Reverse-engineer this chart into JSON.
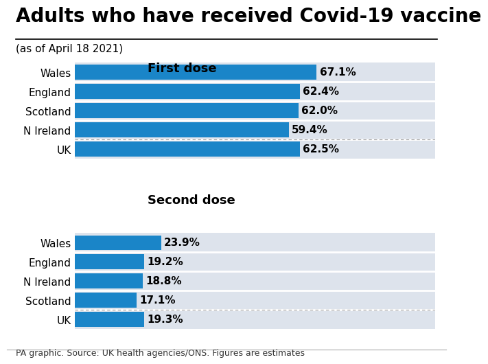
{
  "title": "Adults who have received Covid-19 vaccine",
  "subtitle": "(as of April 18 2021)",
  "footer": "PA graphic. Source: UK health agencies/ONS. Figures are estimates",
  "first_dose": {
    "label": "First dose",
    "categories": [
      "Wales",
      "England",
      "Scotland",
      "N Ireland"
    ],
    "values": [
      67.1,
      62.4,
      62.0,
      59.4
    ],
    "uk_value": 62.5,
    "uk_label": "UK"
  },
  "second_dose": {
    "label": "Second dose",
    "categories": [
      "Wales",
      "England",
      "N Ireland",
      "Scotland"
    ],
    "values": [
      23.9,
      19.2,
      18.8,
      17.1
    ],
    "uk_value": 19.3,
    "uk_label": "UK"
  },
  "max_value": 100,
  "bar_blue": "#1a85c8",
  "row_bg": "#dde3ec",
  "uk_row_bg": "#dde3ec",
  "bar_height": 0.78,
  "title_fontsize": 20,
  "subtitle_fontsize": 11,
  "section_fontsize": 13,
  "tick_fontsize": 11,
  "value_fontsize": 11,
  "footer_fontsize": 9
}
